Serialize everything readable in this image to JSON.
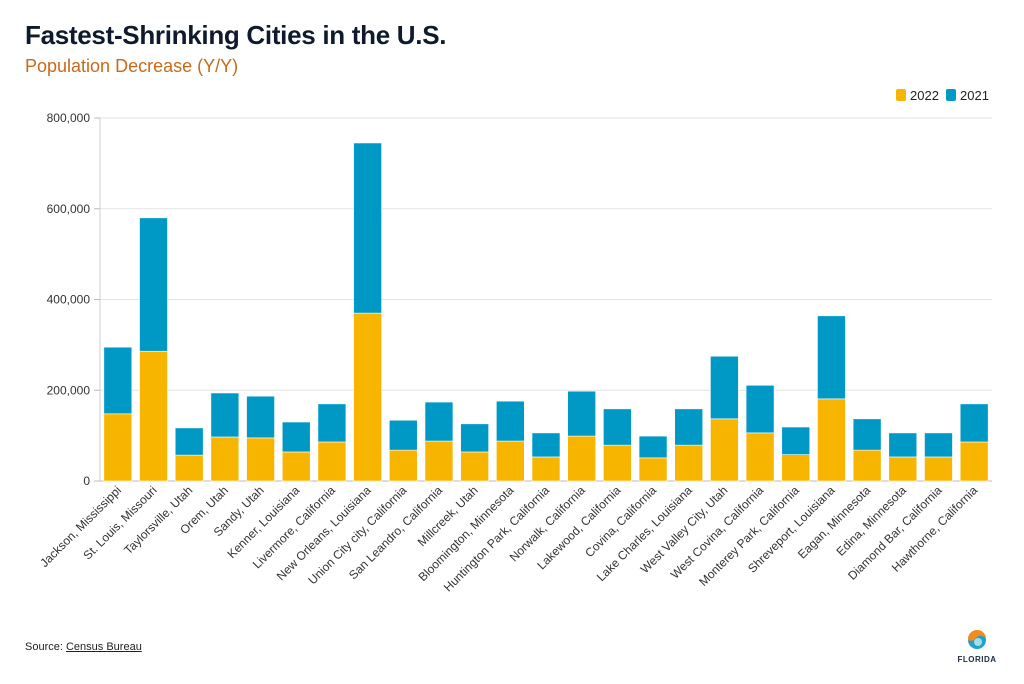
{
  "chart_data": {
    "type": "bar",
    "stacked": true,
    "title": "Fastest-Shrinking Cities in the U.S.",
    "subtitle": "Population Decrease (Y/Y)",
    "xlabel": "",
    "ylabel": "",
    "ylim": [
      0,
      800000
    ],
    "yticks": [
      "0",
      "200,000",
      "400,000",
      "600,000",
      "800,000"
    ],
    "grid": true,
    "legend_position": "top-right",
    "categories": [
      "Jackson, Mississippi",
      "St. Louis, Missouri",
      "Taylorsville, Utah",
      "Orem, Utah",
      "Sandy, Utah",
      "Kenner, Louisiana",
      "Livermore, California",
      "New Orleans, Louisiana",
      "Union City city, California",
      "San Leandro, California",
      "Millcreek, Utah",
      "Bloomington, Minnesota",
      "Huntington Park, California",
      "Norwalk, California",
      "Lakewood, California",
      "Covina, California",
      "Lake Charles, Louisiana",
      "West Valley City, Utah",
      "West Covina, California",
      "Monterey Park, California",
      "Shreveport, Louisiana",
      "Eagan, Minnesota",
      "Edina, Minnesota",
      "Diamond Bar, California",
      "Hawthorne, California"
    ],
    "series": [
      {
        "name": "2022",
        "color": "#f7b500",
        "values": [
          148000,
          286000,
          57000,
          97000,
          95000,
          64000,
          86000,
          370000,
          68000,
          88000,
          64000,
          88000,
          53000,
          99000,
          79000,
          51000,
          79000,
          137000,
          106000,
          58000,
          181000,
          68000,
          53000,
          53000,
          86000
        ]
      },
      {
        "name": "2021",
        "color": "#0099c6",
        "values": [
          147000,
          294000,
          60000,
          97000,
          92000,
          66000,
          84000,
          375000,
          66000,
          86000,
          62000,
          88000,
          53000,
          99000,
          80000,
          48000,
          80000,
          138000,
          105000,
          61000,
          183000,
          69000,
          53000,
          53000,
          84000
        ]
      }
    ]
  },
  "source": {
    "label": "Source:",
    "link": "Census Bureau"
  },
  "logo": {
    "text": "FLORIDA"
  }
}
